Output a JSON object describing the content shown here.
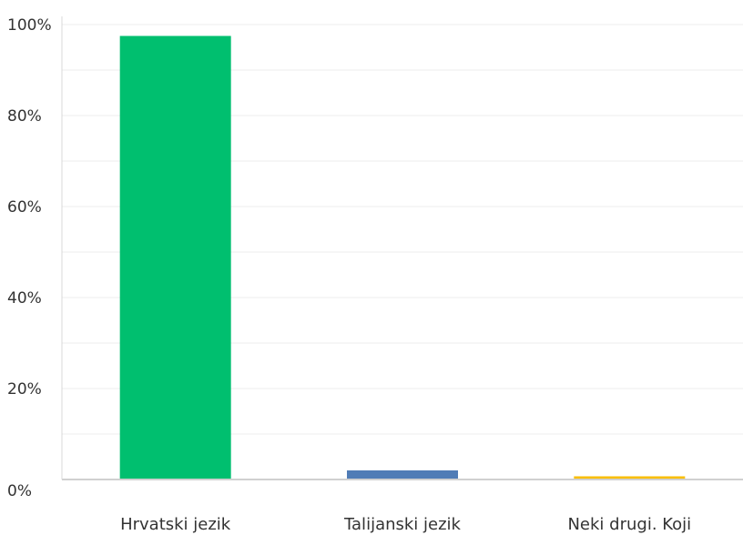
{
  "chart_data": {
    "type": "bar",
    "categories": [
      "Hrvatski jezik",
      "Talijanski jezik",
      "Neki drugi. Koji"
    ],
    "values": [
      97.5,
      2.0,
      0.7
    ],
    "colors": [
      "#00bf6f",
      "#507cb6",
      "#f9be00"
    ],
    "yticks": [
      "0%",
      "20%",
      "40%",
      "60%",
      "80%",
      "100%"
    ],
    "ylim": [
      0,
      100
    ],
    "grid": true,
    "legend": "none"
  }
}
